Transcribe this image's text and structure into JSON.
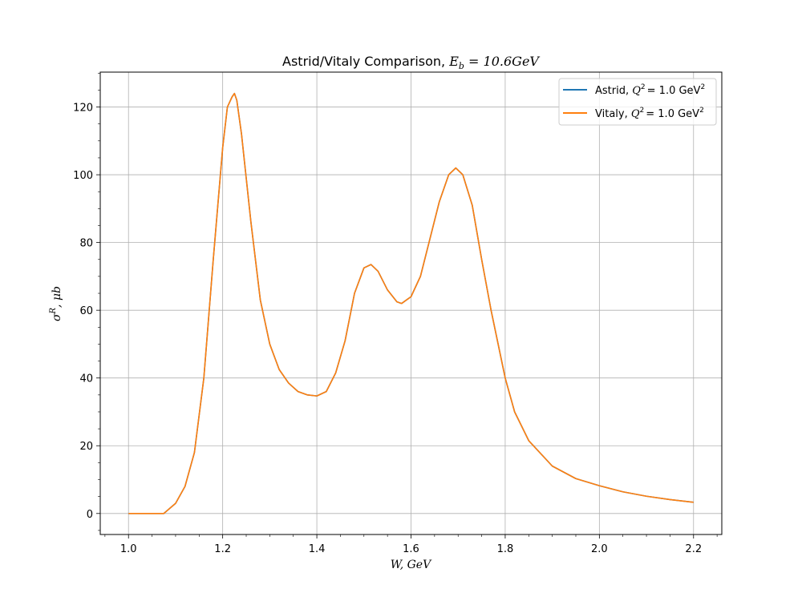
{
  "chart_data": {
    "type": "line",
    "title": "Astrid/Vitaly Comparison, E_b = 10.6GeV",
    "title_parts": {
      "text": "Astrid/Vitaly Comparison, ",
      "symbol": "E",
      "subscript": "b",
      "rest": " = 10.6GeV"
    },
    "xlabel": "W, GeV",
    "ylabel": "σ^R, μb",
    "ylabel_parts": {
      "base": "σ",
      "sup": "R",
      "rest": ", μb"
    },
    "xlim": [
      0.94,
      2.26
    ],
    "ylim": [
      -6.2,
      130.3
    ],
    "xticks": [
      1.0,
      1.2,
      1.4,
      1.6,
      1.8,
      2.0,
      2.2
    ],
    "xtick_labels": [
      "1.0",
      "1.2",
      "1.4",
      "1.6",
      "1.8",
      "2.0",
      "2.2"
    ],
    "yticks": [
      0,
      20,
      40,
      60,
      80,
      100,
      120
    ],
    "ytick_labels": [
      "0",
      "20",
      "40",
      "60",
      "80",
      "100",
      "120"
    ],
    "grid": true,
    "legend_position": "top-right",
    "series": [
      {
        "name": "Astrid, Q^2 = 1.0 GeV^2",
        "label_parts": {
          "text": "Astrid, ",
          "rest": "= 1.0 GeV"
        },
        "color": "#1f77b4",
        "x": [
          1.0,
          1.05,
          1.075,
          1.1,
          1.12,
          1.14,
          1.16,
          1.18,
          1.2,
          1.21,
          1.22,
          1.225,
          1.23,
          1.24,
          1.26,
          1.28,
          1.3,
          1.32,
          1.34,
          1.36,
          1.38,
          1.4,
          1.42,
          1.44,
          1.46,
          1.48,
          1.5,
          1.515,
          1.53,
          1.55,
          1.57,
          1.58,
          1.6,
          1.62,
          1.64,
          1.66,
          1.68,
          1.695,
          1.71,
          1.73,
          1.75,
          1.77,
          1.8,
          1.82,
          1.85,
          1.9,
          1.95,
          2.0,
          2.05,
          2.1,
          2.15,
          2.2
        ],
        "y": [
          0,
          0,
          0,
          3,
          8,
          18,
          40,
          75,
          108,
          120,
          123,
          124,
          122,
          112,
          86,
          63,
          50,
          42.5,
          38.5,
          36,
          35,
          34.7,
          36,
          41.5,
          51,
          65,
          72.5,
          73.5,
          71.5,
          66,
          62.5,
          62,
          64,
          70,
          81,
          92,
          100,
          102,
          100,
          91,
          75,
          60,
          40,
          30,
          21.5,
          14,
          10.3,
          8.2,
          6.4,
          5.1,
          4.1,
          3.3
        ]
      },
      {
        "name": "Vitaly, Q^2 = 1.0 GeV^2",
        "label_parts": {
          "text": "Vitaly, ",
          "rest": "= 1.0 GeV"
        },
        "color": "#ff7f0e",
        "x": [
          1.0,
          1.05,
          1.075,
          1.1,
          1.12,
          1.14,
          1.16,
          1.18,
          1.2,
          1.21,
          1.22,
          1.225,
          1.23,
          1.24,
          1.26,
          1.28,
          1.3,
          1.32,
          1.34,
          1.36,
          1.38,
          1.4,
          1.42,
          1.44,
          1.46,
          1.48,
          1.5,
          1.515,
          1.53,
          1.55,
          1.57,
          1.58,
          1.6,
          1.62,
          1.64,
          1.66,
          1.68,
          1.695,
          1.71,
          1.73,
          1.75,
          1.77,
          1.8,
          1.82,
          1.85,
          1.9,
          1.95,
          2.0,
          2.05,
          2.1,
          2.15,
          2.2
        ],
        "y": [
          0,
          0,
          0,
          3,
          8,
          18,
          40,
          75,
          108,
          120,
          123,
          124,
          122,
          112,
          86,
          63,
          50,
          42.5,
          38.5,
          36,
          35,
          34.7,
          36,
          41.5,
          51,
          65,
          72.5,
          73.5,
          71.5,
          66,
          62.5,
          62,
          64,
          70,
          81,
          92,
          100,
          102,
          100,
          91,
          75,
          60,
          40,
          30,
          21.5,
          14,
          10.3,
          8.2,
          6.4,
          5.1,
          4.1,
          3.3
        ]
      }
    ]
  }
}
